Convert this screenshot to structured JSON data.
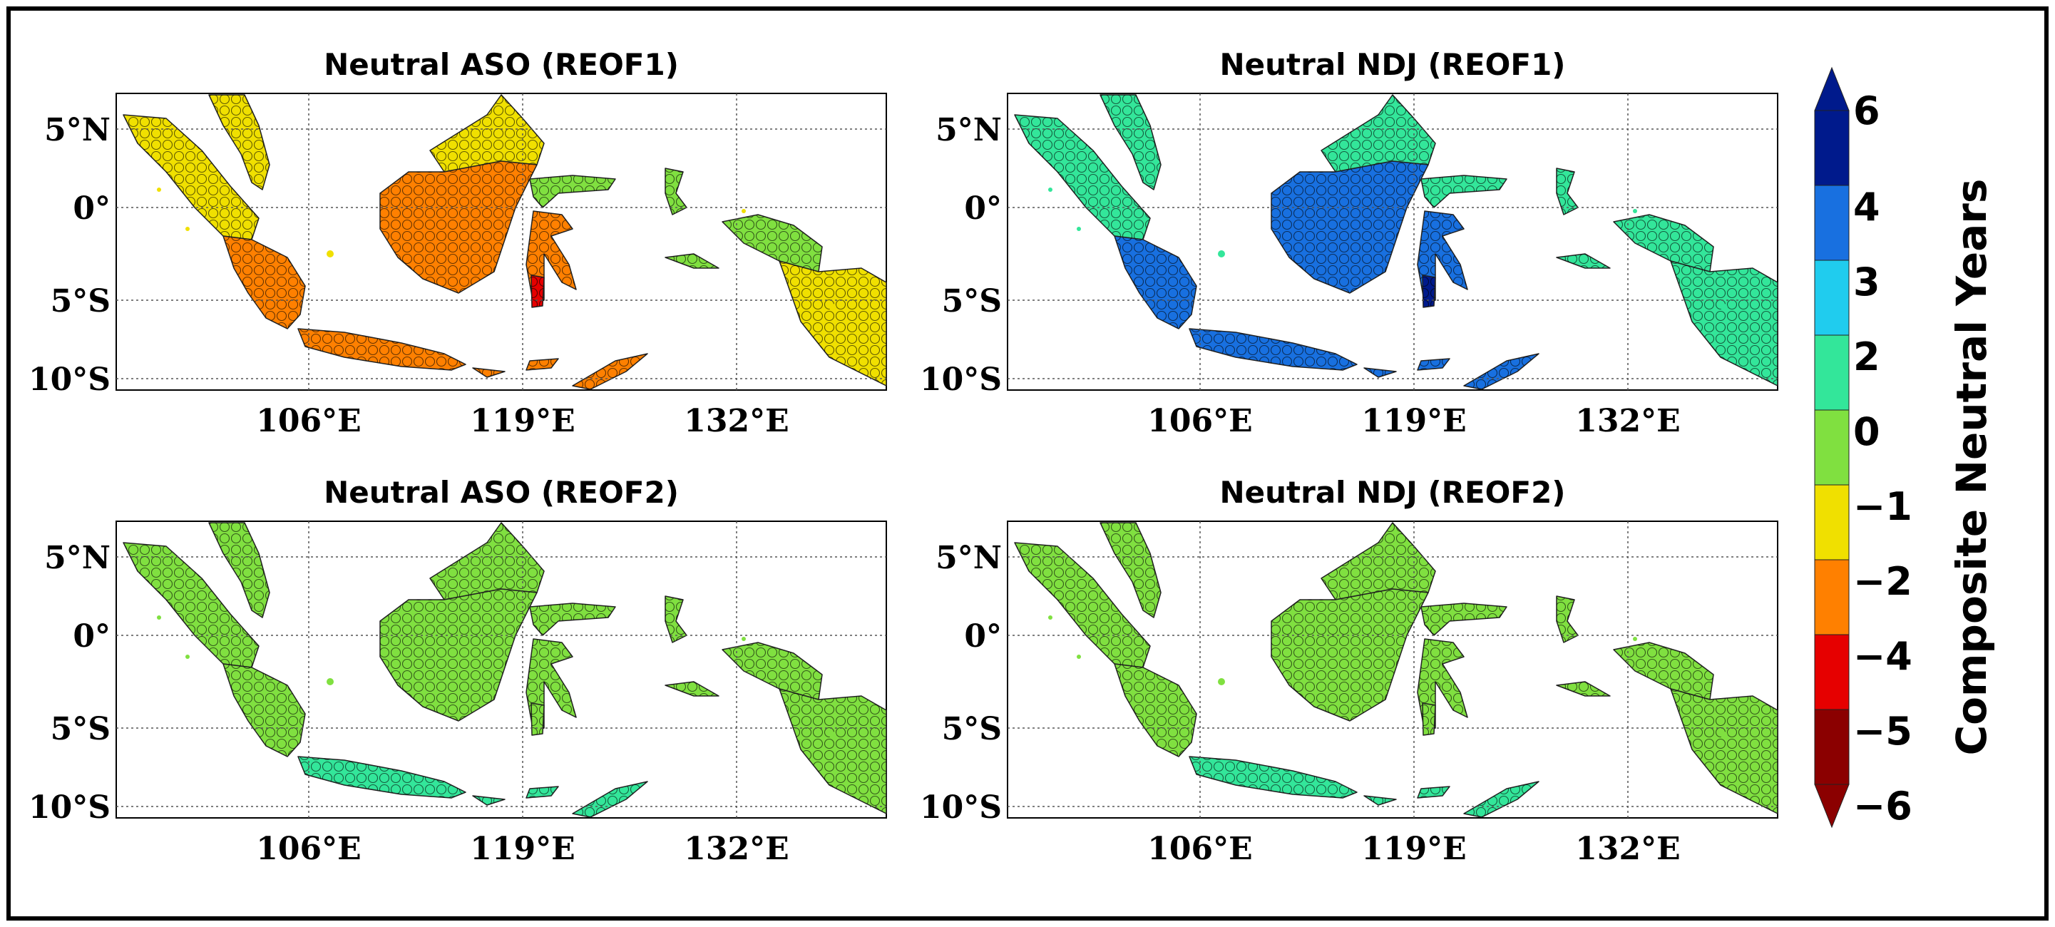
{
  "figure": {
    "panels": [
      {
        "title": "Neutral ASO (REOF1)",
        "lat_labels": [
          "5°N",
          "0°",
          "5°S",
          "10°S"
        ],
        "lon_labels": [
          "106°E",
          "119°E",
          "132°E"
        ],
        "region_values": {
          "sumatra_north": -1.5,
          "sumatra_south": -3,
          "malaya": -1.5,
          "borneo_north": -1.5,
          "borneo_south": -3,
          "java": -3,
          "sulawesi_north": -1,
          "sulawesi_body": -3,
          "sulawesi_core": -5,
          "halmahera": -1,
          "seram": -1,
          "nusa": -3,
          "timor": -3,
          "papua_west": -0.5,
          "papua_east": -1.5
        }
      },
      {
        "title": "Neutral NDJ (REOF1)",
        "lat_labels": [
          "5°N",
          "0°",
          "5°S",
          "10°S"
        ],
        "lon_labels": [
          "106°E",
          "119°E",
          "132°E"
        ],
        "region_values": {
          "sumatra_north": 1,
          "sumatra_south": 3.5,
          "malaya": 1,
          "borneo_north": 1.2,
          "borneo_south": 3.5,
          "java": 3.5,
          "sulawesi_north": 1,
          "sulawesi_body": 3.5,
          "sulawesi_core": 5,
          "halmahera": 1,
          "seram": 1,
          "nusa": 3.5,
          "timor": 3.5,
          "papua_west": 1,
          "papua_east": 1
        }
      },
      {
        "title": "Neutral ASO (REOF2)",
        "lat_labels": [
          "5°N",
          "0°",
          "5°S",
          "10°S"
        ],
        "lon_labels": [
          "106°E",
          "119°E",
          "132°E"
        ],
        "region_values": {
          "sumatra_north": -0.5,
          "sumatra_south": -0.5,
          "malaya": -0.5,
          "borneo_north": -0.5,
          "borneo_south": -0.5,
          "java": 1,
          "sulawesi_north": -0.5,
          "sulawesi_body": -0.5,
          "sulawesi_core": -0.5,
          "halmahera": -0.5,
          "seram": -0.5,
          "nusa": 1,
          "timor": 1,
          "papua_west": -0.5,
          "papua_east": -0.5
        }
      },
      {
        "title": "Neutral NDJ (REOF2)",
        "lat_labels": [
          "5°N",
          "0°",
          "5°S",
          "10°S"
        ],
        "lon_labels": [
          "106°E",
          "119°E",
          "132°E"
        ],
        "region_values": {
          "sumatra_north": -0.5,
          "sumatra_south": -0.5,
          "malaya": -0.5,
          "borneo_north": -0.5,
          "borneo_south": -0.5,
          "java": 1,
          "sulawesi_north": -0.5,
          "sulawesi_body": -0.5,
          "sulawesi_core": -0.5,
          "halmahera": -0.5,
          "seram": -0.5,
          "nusa": 1,
          "timor": 1,
          "papua_west": -0.5,
          "papua_east": -0.5
        }
      }
    ],
    "colorbar": {
      "label": "Composite Neutral Years",
      "tick_labels": [
        "6",
        "4",
        "3",
        "2",
        "0",
        "−1",
        "−2",
        "−4",
        "−5",
        "−6"
      ],
      "bins": [
        {
          "from": -6,
          "to": -5,
          "color": "#8b0000"
        },
        {
          "from": -5,
          "to": -4,
          "color": "#e60000"
        },
        {
          "from": -4,
          "to": -2,
          "color": "#ff8000"
        },
        {
          "from": -2,
          "to": -1,
          "color": "#f0e000"
        },
        {
          "from": -1,
          "to": 0,
          "color": "#80e040"
        },
        {
          "from": 0,
          "to": 2,
          "color": "#33e69a"
        },
        {
          "from": 2,
          "to": 3,
          "color": "#20ccee"
        },
        {
          "from": 3,
          "to": 4,
          "color": "#1870e0"
        },
        {
          "from": 4,
          "to": 6,
          "color": "#001a8c"
        }
      ],
      "extend_low_color": "#8b0000",
      "extend_high_color": "#001a8c"
    }
  }
}
